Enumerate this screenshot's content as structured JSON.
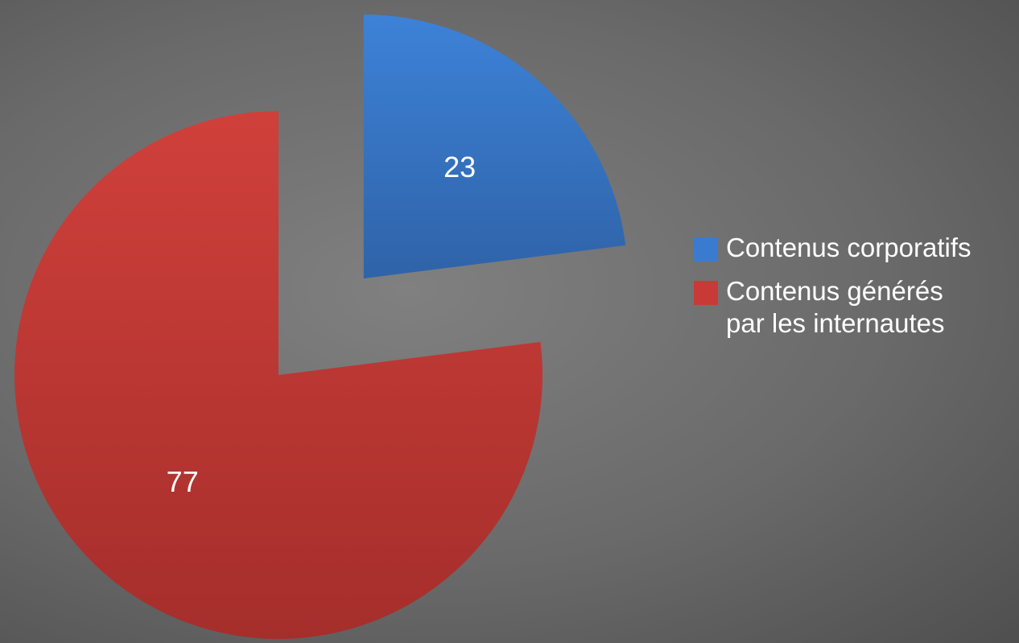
{
  "chart_data": {
    "type": "pie",
    "categories": [
      "Contenus corporatifs",
      "Contenus générés par les internautes"
    ],
    "values": [
      23,
      77
    ],
    "colors": [
      "#3a7bd0",
      "#c83a35"
    ],
    "exploded": [
      true,
      false
    ],
    "legend": "right"
  }
}
